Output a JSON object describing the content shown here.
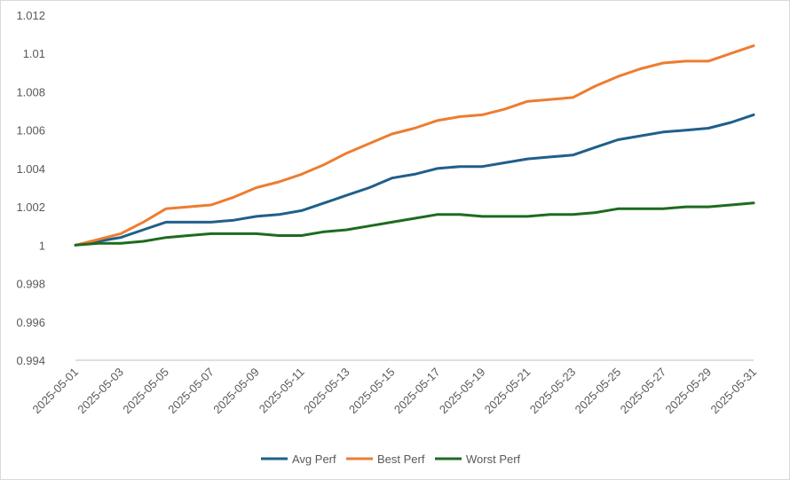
{
  "chart_data": {
    "type": "line",
    "title": "",
    "xlabel": "",
    "ylabel": "",
    "ylim": [
      0.994,
      1.012
    ],
    "y_ticks": [
      1.012,
      1.01,
      1.008,
      1.006,
      1.004,
      1.002,
      1,
      0.998,
      0.996,
      0.994
    ],
    "y_tick_labels": [
      "1.012",
      "1.01",
      "1.008",
      "1.006",
      "1.004",
      "1.002",
      "1",
      "0.998",
      "0.996",
      "0.994"
    ],
    "x_tick_labels": [
      "2025-05-01",
      "2025-05-03",
      "2025-05-05",
      "2025-05-07",
      "2025-05-09",
      "2025-05-11",
      "2025-05-13",
      "2025-05-15",
      "2025-05-17",
      "2025-05-19",
      "2025-05-21",
      "2025-05-23",
      "2025-05-25",
      "2025-05-27",
      "2025-05-29",
      "2025-05-31"
    ],
    "x": [
      "2025-05-01",
      "2025-05-02",
      "2025-05-03",
      "2025-05-04",
      "2025-05-05",
      "2025-05-06",
      "2025-05-07",
      "2025-05-08",
      "2025-05-09",
      "2025-05-10",
      "2025-05-11",
      "2025-05-12",
      "2025-05-13",
      "2025-05-14",
      "2025-05-15",
      "2025-05-16",
      "2025-05-17",
      "2025-05-18",
      "2025-05-19",
      "2025-05-20",
      "2025-05-21",
      "2025-05-22",
      "2025-05-23",
      "2025-05-24",
      "2025-05-25",
      "2025-05-26",
      "2025-05-27",
      "2025-05-28",
      "2025-05-29",
      "2025-05-30",
      "2025-05-31"
    ],
    "grid": false,
    "legend_position": "bottom",
    "series": [
      {
        "name": "Avg Perf",
        "color": "#1f5f8b",
        "values": [
          1.0,
          1.0002,
          1.0004,
          1.0008,
          1.0012,
          1.0012,
          1.0012,
          1.0013,
          1.0015,
          1.0016,
          1.0018,
          1.0022,
          1.0026,
          1.003,
          1.0035,
          1.0037,
          1.004,
          1.0041,
          1.0041,
          1.0043,
          1.0045,
          1.0046,
          1.0047,
          1.0051,
          1.0055,
          1.0057,
          1.0059,
          1.006,
          1.0061,
          1.0064,
          1.0068
        ]
      },
      {
        "name": "Best Perf",
        "color": "#ed7d31",
        "values": [
          1.0,
          1.0003,
          1.0006,
          1.0012,
          1.0019,
          1.002,
          1.0021,
          1.0025,
          1.003,
          1.0033,
          1.0037,
          1.0042,
          1.0048,
          1.0053,
          1.0058,
          1.0061,
          1.0065,
          1.0067,
          1.0068,
          1.0071,
          1.0075,
          1.0076,
          1.0077,
          1.0083,
          1.0088,
          1.0092,
          1.0095,
          1.0096,
          1.0096,
          1.01,
          1.0104
        ]
      },
      {
        "name": "Worst Perf",
        "color": "#1e6b20",
        "values": [
          1.0,
          1.0001,
          1.0001,
          1.0002,
          1.0004,
          1.0005,
          1.0006,
          1.0006,
          1.0006,
          1.0005,
          1.0005,
          1.0007,
          1.0008,
          1.001,
          1.0012,
          1.0014,
          1.0016,
          1.0016,
          1.0015,
          1.0015,
          1.0015,
          1.0016,
          1.0016,
          1.0017,
          1.0019,
          1.0019,
          1.0019,
          1.002,
          1.002,
          1.0021,
          1.0022
        ]
      }
    ]
  }
}
